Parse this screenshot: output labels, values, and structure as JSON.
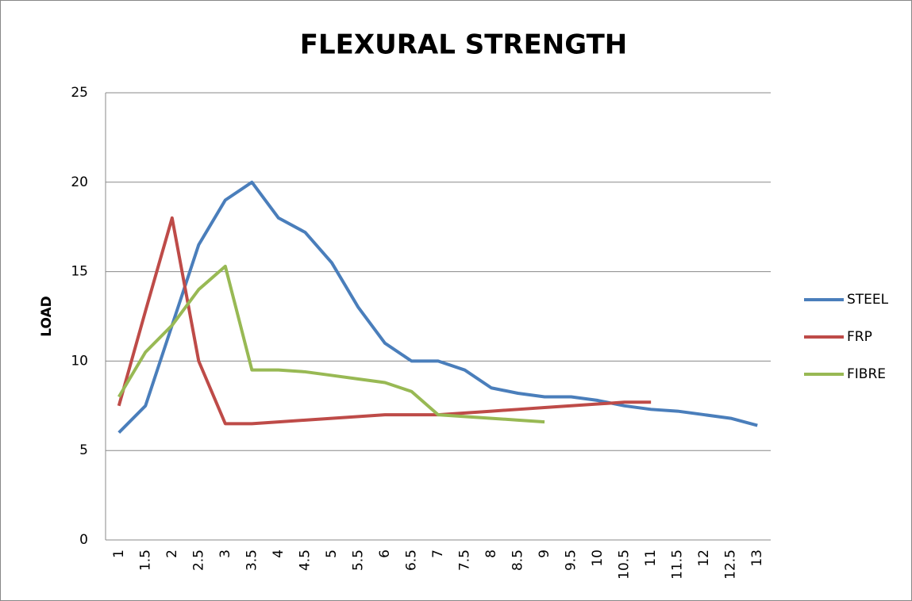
{
  "chart_data": {
    "type": "line",
    "title": "FLEXURAL STRENGTH",
    "y_label": "LOAD",
    "categories": [
      1,
      1.5,
      2,
      2.5,
      3,
      3.5,
      4,
      4.5,
      5,
      5.5,
      6,
      6.5,
      7,
      7.5,
      8,
      8.5,
      9,
      9.5,
      10,
      10.5,
      11,
      11.5,
      12,
      12.5,
      13
    ],
    "series": [
      {
        "name": "STEEL",
        "color": "#4a7ebb",
        "values": [
          6.0,
          7.5,
          12,
          16.5,
          19,
          20,
          18,
          17.2,
          15.5,
          13,
          11,
          10,
          10,
          9.5,
          8.5,
          8.2,
          8.0,
          8.0,
          7.8,
          7.5,
          7.3,
          7.2,
          7.0,
          6.8,
          6.4
        ]
      },
      {
        "name": "FRP",
        "color": "#be4b48",
        "values": [
          7.5,
          12.8,
          18,
          10,
          6.5,
          6.5,
          6.6,
          6.7,
          6.8,
          6.9,
          7.0,
          7.0,
          7.0,
          7.1,
          7.2,
          7.3,
          7.4,
          7.5,
          7.6,
          7.7,
          7.7,
          null,
          null,
          null,
          null
        ]
      },
      {
        "name": "FIBRE",
        "color": "#98b954",
        "values": [
          8.0,
          10.5,
          12,
          14,
          15.3,
          9.5,
          9.5,
          9.4,
          9.2,
          9.0,
          8.8,
          8.3,
          7.0,
          6.9,
          6.8,
          6.7,
          6.6,
          null,
          null,
          null,
          null,
          null,
          null,
          null,
          null
        ]
      }
    ],
    "ylim": [
      0,
      25
    ],
    "yticks": [
      0,
      5,
      10,
      15,
      20,
      25
    ],
    "grid": true,
    "legend": "right"
  }
}
